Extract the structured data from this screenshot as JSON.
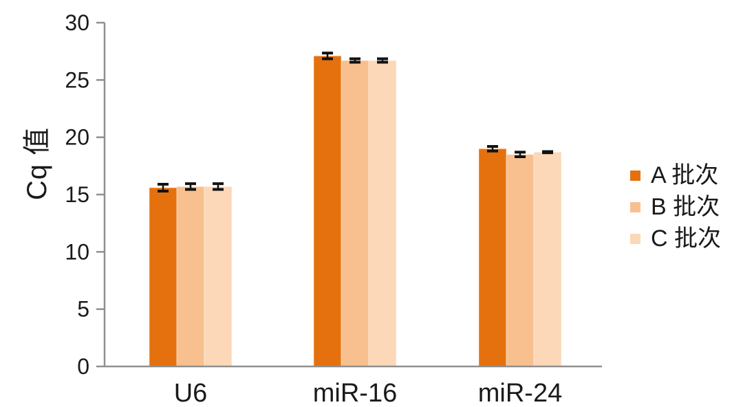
{
  "chart_data": {
    "type": "bar",
    "title": "",
    "categories": [
      "U6",
      "miR-16",
      "miR-24"
    ],
    "series": [
      {
        "name": "A 批次",
        "color": "#E5710E",
        "values": [
          15.6,
          27.1,
          19.0
        ],
        "errors": [
          0.3,
          0.25,
          0.2
        ]
      },
      {
        "name": "B 批次",
        "color": "#F9C08F",
        "values": [
          15.7,
          26.7,
          18.5
        ],
        "errors": [
          0.25,
          0.15,
          0.2
        ]
      },
      {
        "name": "C 批次",
        "color": "#FCD8B8",
        "values": [
          15.7,
          26.7,
          18.7
        ],
        "errors": [
          0.25,
          0.15,
          0.05
        ]
      }
    ],
    "ylabel": "Cq 值",
    "xlabel": "",
    "ylim": [
      0,
      30
    ],
    "yticks": [
      0,
      5,
      10,
      15,
      20,
      25,
      30
    ],
    "grid": false,
    "legend_position": "right",
    "colors": {
      "axis": "#8F8F8F",
      "tick_label": "#1A1A1A",
      "error_bar": "#111111",
      "background": "#FFFFFF"
    }
  }
}
